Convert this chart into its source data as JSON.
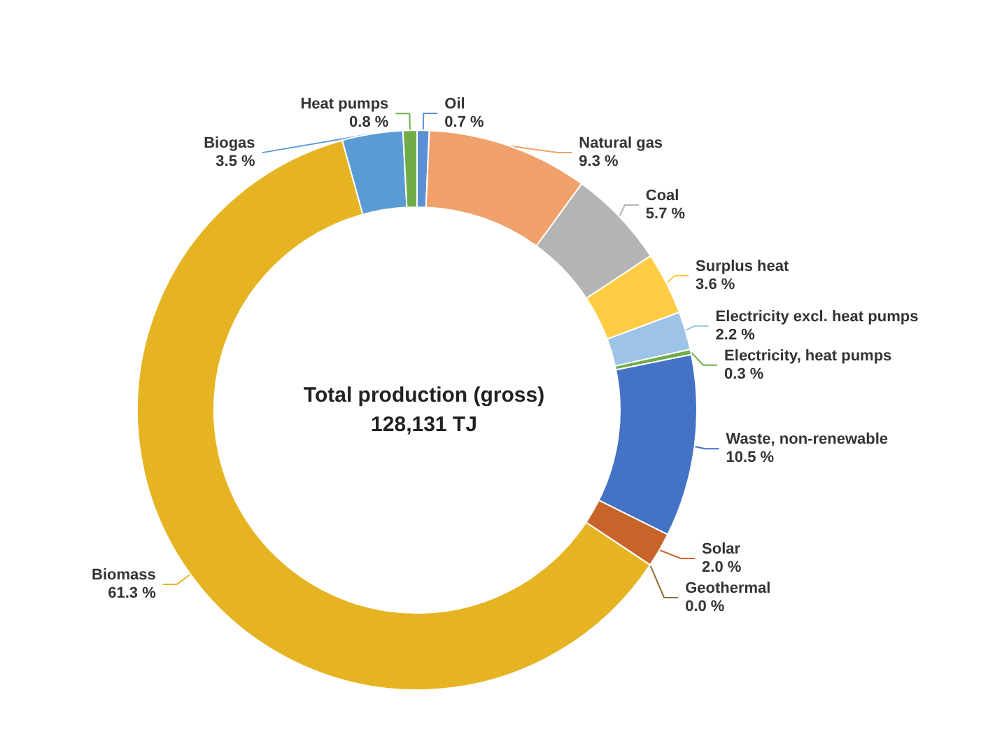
{
  "chart_data": {
    "type": "donut",
    "title": "Total production (gross)",
    "subtitle": "128,131 TJ",
    "categories": [
      "Oil",
      "Natural gas",
      "Coal",
      "Surplus heat",
      "Electricity excl. heat pumps",
      "Electricity, heat pumps",
      "Waste, non-renewable",
      "Solar",
      "Geothermal",
      "Biomass",
      "Biogas",
      "Heat pumps"
    ],
    "values": [
      0.7,
      9.3,
      5.7,
      3.6,
      2.2,
      0.3,
      10.5,
      2.0,
      0.0,
      61.3,
      3.5,
      0.8
    ],
    "value_labels": [
      "0.7 %",
      "9.3 %",
      "5.7 %",
      "3.6 %",
      "2.2 %",
      "0.3 %",
      "10.5 %",
      "2.0 %",
      "0.0 %",
      "61.3 %",
      "3.5 %",
      "0.8 %"
    ],
    "colors": [
      "#5b8fd6",
      "#f0a06a",
      "#b4b4b4",
      "#ffcc44",
      "#9dc3e6",
      "#70ad47",
      "#4472c4",
      "#c8642a",
      "#8c6d3a",
      "#e6b422",
      "#5b9bd5",
      "#70ad47"
    ]
  }
}
